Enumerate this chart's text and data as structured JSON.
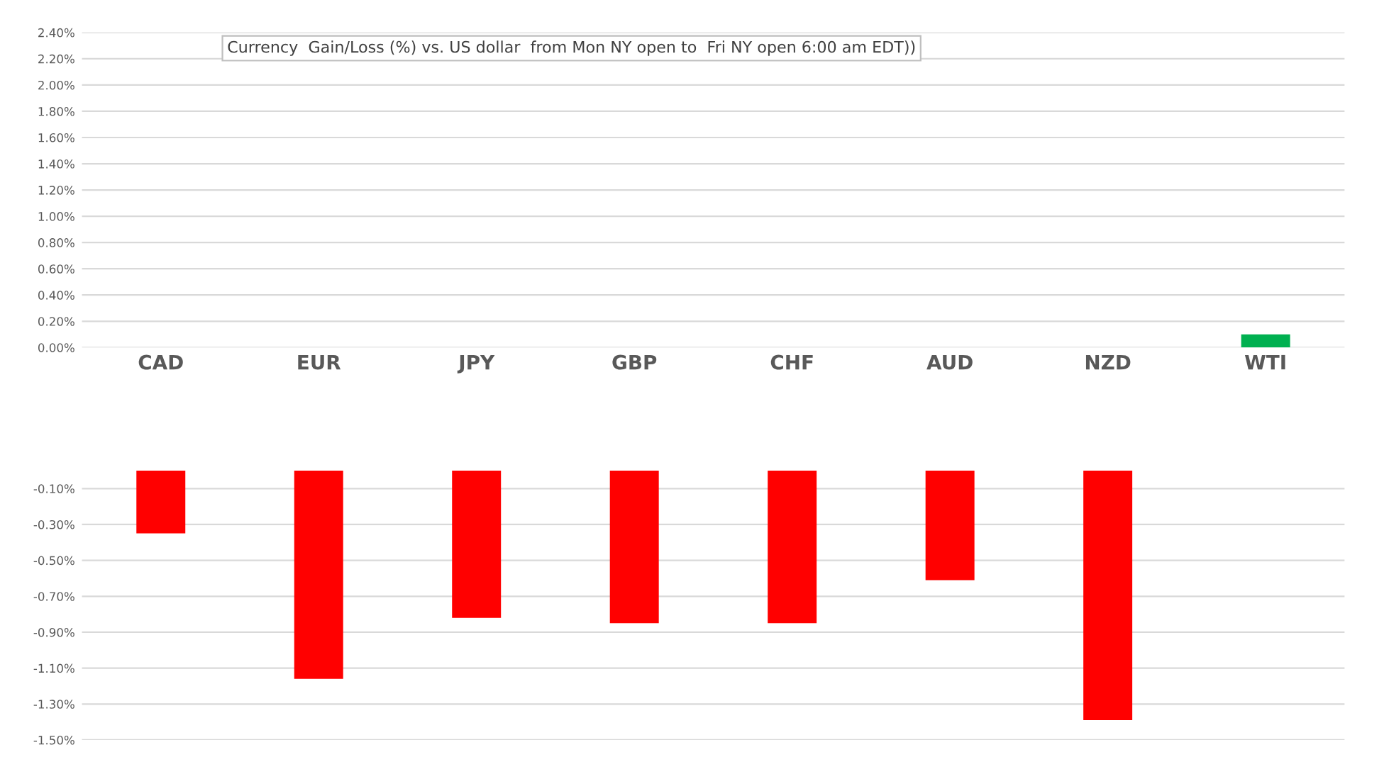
{
  "chart_data": [
    {
      "type": "bar",
      "title": "Currency  Gain/Loss (%) vs. US dollar  from Mon NY open to  Fri NY open 6:00 am EDT))",
      "categories": [
        "CAD",
        "EUR",
        "JPY",
        "GBP",
        "CHF",
        "AUD",
        "NZD",
        "WTI"
      ],
      "series": [
        {
          "color": "#00b050",
          "values": [
            null,
            null,
            null,
            null,
            null,
            null,
            null,
            0.1
          ]
        }
      ],
      "ylim": [
        0,
        2.4
      ],
      "yticks": [
        {
          "value": 0,
          "label": "0.00%"
        },
        {
          "value": 0.2,
          "label": "0.20%"
        },
        {
          "value": 0.4,
          "label": "0.40%"
        },
        {
          "value": 0.6,
          "label": "0.60%"
        },
        {
          "value": 0.8,
          "label": "0.80%"
        },
        {
          "value": 1.0,
          "label": "1.00%"
        },
        {
          "value": 1.2,
          "label": "1.20%"
        },
        {
          "value": 1.4,
          "label": "1.40%"
        },
        {
          "value": 1.6,
          "label": "1.60%"
        },
        {
          "value": 1.8,
          "label": "1.80%"
        },
        {
          "value": 2.0,
          "label": "2.00%"
        },
        {
          "value": 2.2,
          "label": "2.20%"
        },
        {
          "value": 2.4,
          "label": "2.40%"
        }
      ],
      "grid": "y",
      "legend": false
    },
    {
      "type": "bar",
      "categories": [
        null,
        null,
        null,
        null,
        null,
        null,
        null,
        null
      ],
      "series": [
        {
          "color": "#ff0000",
          "values": [
            -0.35,
            -1.16,
            -0.82,
            -0.85,
            -0.85,
            -0.61,
            -1.39,
            null
          ]
        }
      ],
      "ylim": [
        -1.5,
        0
      ],
      "yticks": [
        {
          "value": -0.1,
          "label": "-0.10%"
        },
        {
          "value": -0.3,
          "label": "-0.30%"
        },
        {
          "value": -0.5,
          "label": "-0.50%"
        },
        {
          "value": -0.7,
          "label": "-0.70%"
        },
        {
          "value": -0.9,
          "label": "-0.90%"
        },
        {
          "value": -1.1,
          "label": "-1.10%"
        },
        {
          "value": -1.3,
          "label": "-1.30%"
        },
        {
          "value": -1.5,
          "label": "-1.50%"
        }
      ],
      "grid": "y",
      "legend": false,
      "tick_labels": "y"
    }
  ]
}
